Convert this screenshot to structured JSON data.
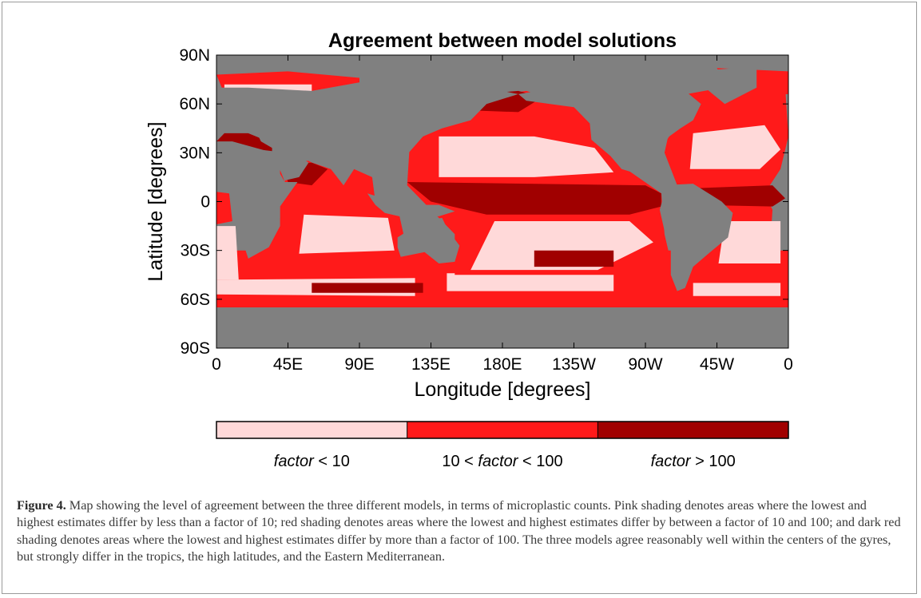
{
  "figure": {
    "label": "Figure 4.",
    "caption": "Map showing the level of agreement between the three different models, in terms of microplastic counts. Pink shading denotes areas where the lowest and highest estimates differ by less than a factor of 10; red shading denotes areas where the lowest and highest estimates differ by between a factor of 10 and 100; and dark red shading denotes areas where the lowest and highest estimates differ by more than a factor of 100. The three models agree reasonably well within the centers of the gyres, but strongly differ in the tropics, the high latitudes, and the Eastern Mediterranean."
  },
  "chart_data": {
    "type": "heatmap",
    "title": "Agreement between model solutions",
    "xlabel": "Longitude [degrees]",
    "ylabel": "Latitude [degrees]",
    "x_ticks": [
      "0",
      "45E",
      "90E",
      "135E",
      "180E",
      "135W",
      "90W",
      "45W",
      "0"
    ],
    "y_ticks": [
      "90N",
      "60N",
      "30N",
      "0",
      "30S",
      "60S",
      "90S"
    ],
    "xlim": [
      0,
      360
    ],
    "ylim": [
      -90,
      90
    ],
    "land_color": "#808080",
    "categories": [
      {
        "label_pre": "",
        "label_em": "factor",
        "label_post": " < 10",
        "color": "#ffd9d9"
      },
      {
        "label_pre": "10 < ",
        "label_em": "factor",
        "label_post": " < 100",
        "color": "#ff1a1a"
      },
      {
        "label_pre": "",
        "label_em": "factor",
        "label_post": " > 100",
        "color": "#a00000"
      }
    ]
  }
}
